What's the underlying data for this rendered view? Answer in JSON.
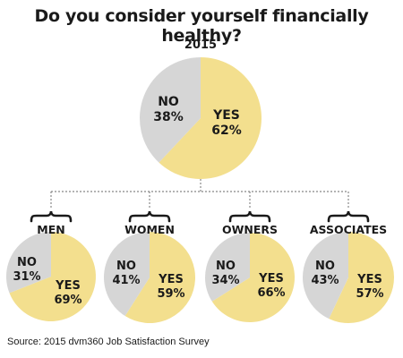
{
  "title": "Do you consider yourself financially healthy?",
  "source": "Source: 2015 dvm360 Job Satisfaction Survey",
  "colors": {
    "yes": "#f3df8e",
    "no": "#d6d6d6",
    "connector": "#888888"
  },
  "chart_data": [
    {
      "type": "pie",
      "label": "2015",
      "labels": [
        "YES",
        "NO"
      ],
      "values": [
        62,
        38
      ]
    },
    {
      "type": "pie",
      "label": "MEN",
      "labels": [
        "YES",
        "NO"
      ],
      "values": [
        69,
        31
      ]
    },
    {
      "type": "pie",
      "label": "WOMEN",
      "labels": [
        "YES",
        "NO"
      ],
      "values": [
        59,
        41
      ]
    },
    {
      "type": "pie",
      "label": "OWNERS",
      "labels": [
        "YES",
        "NO"
      ],
      "values": [
        66,
        34
      ]
    },
    {
      "type": "pie",
      "label": "ASSOCIATES",
      "labels": [
        "YES",
        "NO"
      ],
      "values": [
        57,
        43
      ]
    }
  ]
}
